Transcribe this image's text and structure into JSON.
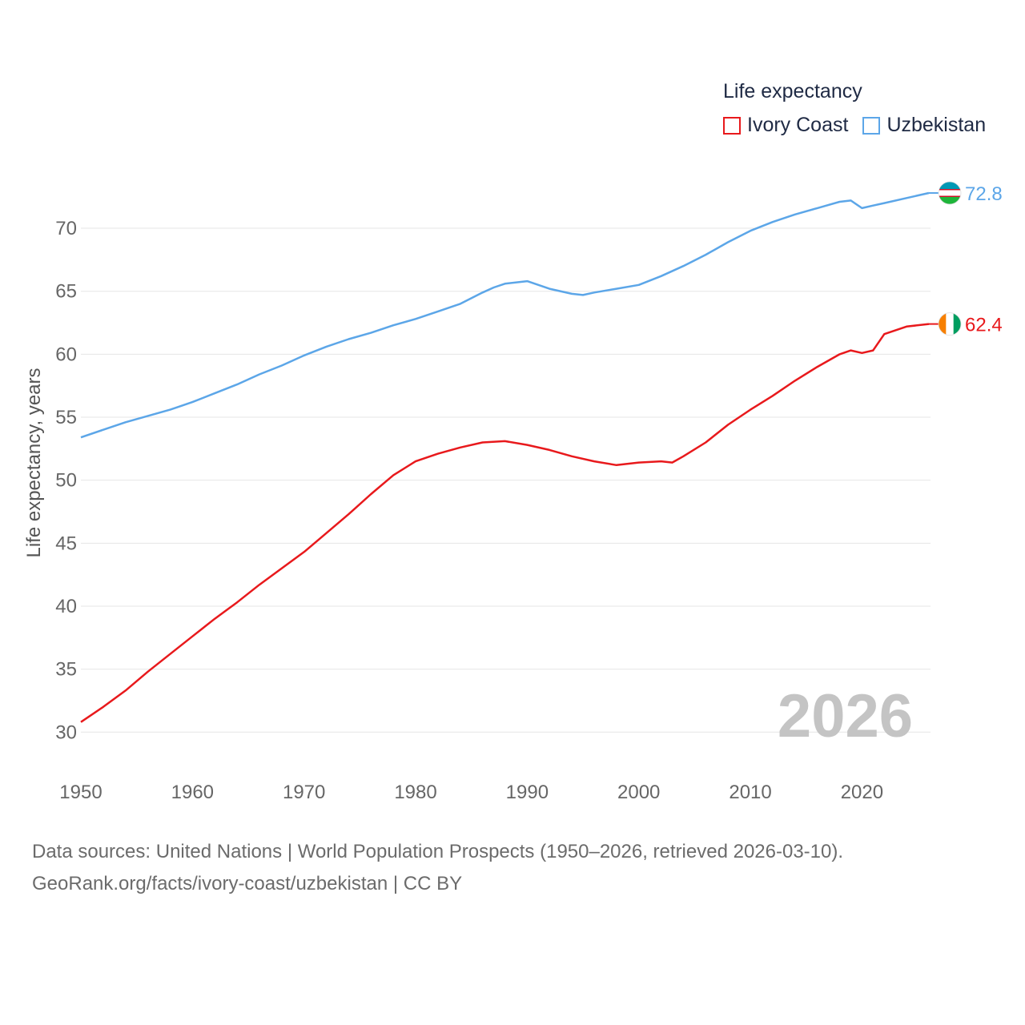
{
  "legend": {
    "title": "Life expectancy",
    "items": [
      {
        "label": "Ivory Coast",
        "color": "#e8191c"
      },
      {
        "label": "Uzbekistan",
        "color": "#5ca6e8"
      }
    ]
  },
  "footer": {
    "line1": "Data sources: United Nations | World Population Prospects (1950–2026, retrieved 2026-03-10).",
    "line2": "GeoRank.org/facts/ivory-coast/uzbekistan | CC BY"
  },
  "chart_data": {
    "type": "line",
    "title": "Life expectancy",
    "xlabel": "",
    "ylabel": "Life expectancy, years",
    "xlim": [
      1950,
      2026
    ],
    "ylim": [
      29,
      73.5
    ],
    "xticks": [
      1950,
      1960,
      1970,
      1980,
      1990,
      2000,
      2010,
      2020
    ],
    "yticks": [
      30,
      35,
      40,
      45,
      50,
      55,
      60,
      65,
      70
    ],
    "grid": true,
    "watermark_year": "2026",
    "series": [
      {
        "name": "Ivory Coast",
        "color": "#e8191c",
        "end_label": "62.4",
        "x": [
          1950,
          1952,
          1954,
          1956,
          1958,
          1960,
          1962,
          1964,
          1966,
          1968,
          1970,
          1972,
          1974,
          1976,
          1978,
          1980,
          1982,
          1984,
          1986,
          1988,
          1990,
          1992,
          1994,
          1996,
          1998,
          2000,
          2002,
          2003,
          2004,
          2006,
          2008,
          2010,
          2012,
          2014,
          2016,
          2018,
          2019,
          2020,
          2021,
          2022,
          2024,
          2026
        ],
        "y": [
          30.8,
          32.0,
          33.3,
          34.8,
          36.2,
          37.6,
          39.0,
          40.3,
          41.7,
          43.0,
          44.3,
          45.8,
          47.3,
          48.9,
          50.4,
          51.5,
          52.1,
          52.6,
          53.0,
          53.1,
          52.8,
          52.4,
          51.9,
          51.5,
          51.2,
          51.4,
          51.5,
          51.4,
          51.9,
          53.0,
          54.4,
          55.6,
          56.7,
          57.9,
          59.0,
          60.0,
          60.3,
          60.1,
          60.3,
          61.6,
          62.2,
          62.4
        ]
      },
      {
        "name": "Uzbekistan",
        "color": "#5ca6e8",
        "end_label": "72.8",
        "x": [
          1950,
          1952,
          1954,
          1956,
          1958,
          1960,
          1962,
          1964,
          1966,
          1968,
          1970,
          1972,
          1974,
          1976,
          1978,
          1980,
          1982,
          1984,
          1986,
          1987,
          1988,
          1990,
          1992,
          1994,
          1995,
          1996,
          1998,
          2000,
          2002,
          2004,
          2006,
          2008,
          2010,
          2012,
          2014,
          2016,
          2018,
          2019,
          2020,
          2021,
          2022,
          2024,
          2026
        ],
        "y": [
          53.4,
          54.0,
          54.6,
          55.1,
          55.6,
          56.2,
          56.9,
          57.6,
          58.4,
          59.1,
          59.9,
          60.6,
          61.2,
          61.7,
          62.3,
          62.8,
          63.4,
          64.0,
          64.9,
          65.3,
          65.6,
          65.8,
          65.2,
          64.8,
          64.7,
          64.9,
          65.2,
          65.5,
          66.2,
          67.0,
          67.9,
          68.9,
          69.8,
          70.5,
          71.1,
          71.6,
          72.1,
          72.2,
          71.6,
          71.8,
          72.0,
          72.4,
          72.8
        ]
      }
    ]
  }
}
